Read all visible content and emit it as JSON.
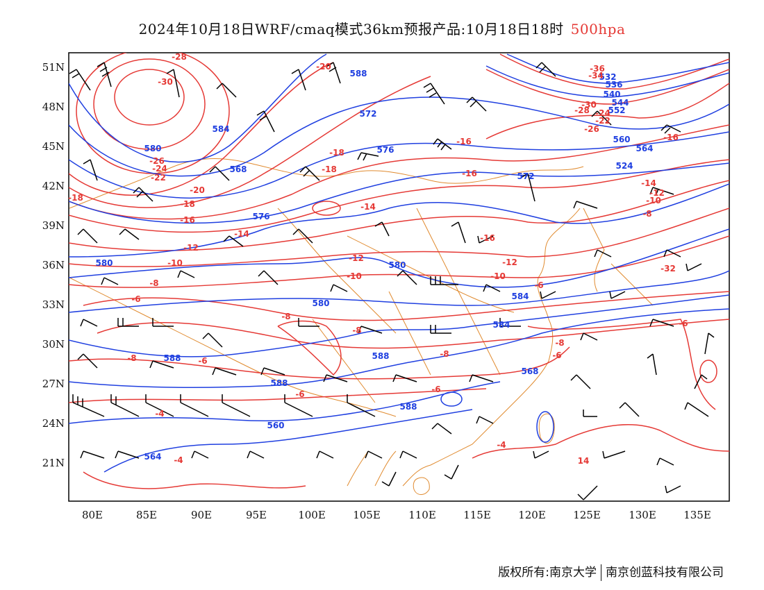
{
  "title": {
    "main": "2024年10月18日WRF/cmaq模式36km预报产品:10月18日18时",
    "level": "500hpa"
  },
  "colors": {
    "height_contour": "#1f3fe0",
    "temperature_contour": "#e53935",
    "coastline_border": "#e08a2e",
    "wind_barb": "#000000",
    "level_label": "#e53935"
  },
  "axes": {
    "lon_labels": [
      "80E",
      "85E",
      "90E",
      "95E",
      "100E",
      "105E",
      "110E",
      "115E",
      "120E",
      "125E",
      "130E",
      "135E"
    ],
    "lat_labels": [
      "51N",
      "48N",
      "45N",
      "42N",
      "39N",
      "36N",
      "33N",
      "30N",
      "27N",
      "24N",
      "21N"
    ]
  },
  "height_labels": [
    "588",
    "584",
    "572",
    "580",
    "560",
    "564",
    "568",
    "576",
    "572",
    "576",
    "580",
    "580",
    "580",
    "584",
    "584",
    "588",
    "588",
    "588",
    "588",
    "560",
    "564",
    "568",
    "524",
    "532",
    "536",
    "540",
    "544",
    "552"
  ],
  "temperature_labels": [
    "-28",
    "-30",
    "-20",
    "-24",
    "-22",
    "-26",
    "-20",
    "-18",
    "-16",
    "-18",
    "-18",
    "-16",
    "-16",
    "-14",
    "-16",
    "-14",
    "-12",
    "-12",
    "-10",
    "-10",
    "-8",
    "-6",
    "-8",
    "-6",
    "-6",
    "-8",
    "-8",
    "-8",
    "-12",
    "-10",
    "-6",
    "-8",
    "-6",
    "-6",
    "-6",
    "-4",
    "-4",
    "-4",
    "14",
    "-18",
    "-16",
    "-14",
    "-12",
    "-10",
    "-8",
    "-32",
    "-36",
    "-34",
    "-28",
    "-24",
    "-22",
    "-26",
    "-30"
  ],
  "footer": {
    "left": "版权所有:南京大学",
    "right": "南京创蓝科技有限公司"
  }
}
